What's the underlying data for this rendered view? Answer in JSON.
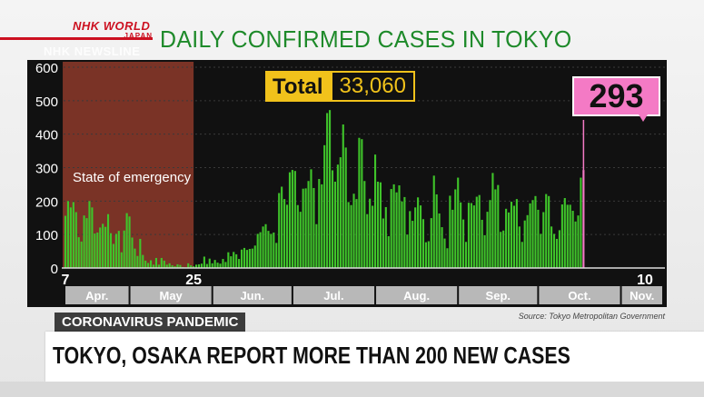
{
  "branding": {
    "logo_line1": "NHK WORLD",
    "logo_line2": "JAPAN",
    "newsline": "NHK NEWSLINE",
    "accent_color": "#cc1020"
  },
  "title": "DAILY CONFIRMED CASES IN TOKYO",
  "total": {
    "label": "Total",
    "value": "33,060"
  },
  "callout": {
    "value": "293"
  },
  "emergency_label": "State of emergency",
  "tag": "CORONAVIRUS PANDEMIC",
  "source": "Source: Tokyo Metropolitan Government",
  "headline": "TOKYO, OSAKA REPORT MORE THAN 200 NEW CASES",
  "chart_data": {
    "type": "bar",
    "title": "DAILY CONFIRMED CASES IN TOKYO",
    "start_date": "2020-04-07",
    "end_date": "2020-11-10",
    "ylim": [
      0,
      600
    ],
    "yticks": [
      0,
      100,
      200,
      300,
      400,
      500,
      600
    ],
    "day_labels": [
      "7",
      "25",
      "10"
    ],
    "months": [
      "Apr.",
      "May",
      "Jun.",
      "Jul.",
      "Aug.",
      "Sep.",
      "Oct.",
      "Nov."
    ],
    "bar_color": "#3fc42a",
    "highlight_color": "#f47ac5",
    "emergency_period": [
      "2020-04-07",
      "2020-05-25"
    ],
    "grid": true,
    "values": [
      156,
      200,
      181,
      197,
      167,
      92,
      79,
      157,
      149,
      200,
      181,
      103,
      106,
      121,
      132,
      123,
      161,
      104,
      72,
      102,
      111,
      47,
      112,
      164,
      154,
      91,
      58,
      36,
      87,
      39,
      22,
      15,
      23,
      10,
      30,
      10,
      30,
      22,
      10,
      14,
      8,
      5,
      11,
      9,
      3,
      2,
      14,
      8,
      5,
      10,
      11,
      13,
      34,
      12,
      28,
      14,
      24,
      16,
      13,
      27,
      18,
      47,
      35,
      48,
      41,
      27,
      55,
      60,
      54,
      57,
      58,
      67,
      102,
      107,
      124,
      131,
      111,
      102,
      106,
      75,
      224,
      243,
      206,
      189,
      286,
      293,
      290,
      188,
      168,
      237,
      238,
      260,
      295,
      239,
      131,
      266,
      250,
      367,
      463,
      472,
      292,
      258,
      309,
      331,
      429,
      360,
      197,
      188,
      222,
      206,
      389,
      385,
      260,
      161,
      207,
      186,
      339,
      258,
      256,
      148,
      182,
      95,
      236,
      250,
      226,
      247,
      199,
      212,
      100,
      170,
      141,
      181,
      211,
      187,
      146,
      77,
      80,
      149,
      276,
      220,
      163,
      122,
      88,
      59,
      216,
      174,
      235,
      270,
      196,
      145,
      78,
      195,
      194,
      187,
      213,
      218,
      144,
      98,
      168,
      203,
      284,
      235,
      248,
      108,
      112,
      177,
      166,
      198,
      186,
      206,
      124,
      78,
      142,
      158,
      193,
      203,
      215,
      174,
      102,
      167,
      221,
      215,
      124,
      102,
      87,
      113,
      190,
      209,
      189,
      189,
      171,
      139,
      157,
      270,
      293
    ]
  }
}
